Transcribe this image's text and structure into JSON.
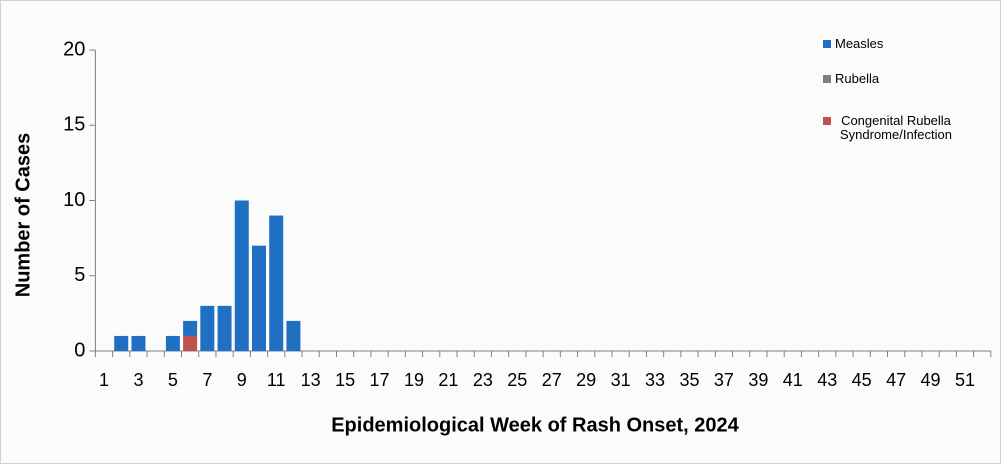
{
  "chart_data": {
    "type": "bar",
    "stacked": true,
    "x_label": "Epidemiological Week of Rash Onset, 2024",
    "y_label": "Number of Cases",
    "categories": [
      1,
      null,
      3,
      null,
      5,
      null,
      7,
      null,
      9,
      null,
      11,
      null,
      13,
      null,
      15,
      null,
      17,
      null,
      19,
      null,
      21,
      null,
      23,
      null,
      25,
      null,
      27,
      null,
      29,
      null,
      31,
      null,
      33,
      null,
      35,
      null,
      37,
      null,
      39,
      null,
      41,
      null,
      43,
      null,
      45,
      null,
      47,
      null,
      49,
      null,
      51,
      null
    ],
    "series": [
      {
        "name": "Measles",
        "color": "#1f6fc2",
        "values": [
          0,
          1,
          1,
          0,
          1,
          1,
          3,
          3,
          10,
          7,
          9,
          2,
          0,
          0,
          0,
          0,
          0,
          0,
          0,
          0,
          0,
          0,
          0,
          0,
          0,
          0,
          0,
          0,
          0,
          0,
          0,
          0,
          0,
          0,
          0,
          0,
          0,
          0,
          0,
          0,
          0,
          0,
          0,
          0,
          0,
          0,
          0,
          0,
          0,
          0,
          0,
          0
        ]
      },
      {
        "name": "Rubella",
        "color": "#7f7f7f",
        "values": [
          0,
          0,
          0,
          0,
          0,
          0,
          0,
          0,
          0,
          0,
          0,
          0,
          0,
          0,
          0,
          0,
          0,
          0,
          0,
          0,
          0,
          0,
          0,
          0,
          0,
          0,
          0,
          0,
          0,
          0,
          0,
          0,
          0,
          0,
          0,
          0,
          0,
          0,
          0,
          0,
          0,
          0,
          0,
          0,
          0,
          0,
          0,
          0,
          0,
          0,
          0,
          0
        ]
      },
      {
        "name": "Congenital Rubella Syndrome/Infection",
        "color": "#c0504d",
        "values": [
          0,
          0,
          0,
          0,
          0,
          1,
          0,
          0,
          0,
          0,
          0,
          0,
          0,
          0,
          0,
          0,
          0,
          0,
          0,
          0,
          0,
          0,
          0,
          0,
          0,
          0,
          0,
          0,
          0,
          0,
          0,
          0,
          0,
          0,
          0,
          0,
          0,
          0,
          0,
          0,
          0,
          0,
          0,
          0,
          0,
          0,
          0,
          0,
          0,
          0,
          0,
          0
        ]
      }
    ],
    "ylim": [
      0,
      20
    ],
    "yticks": [
      0,
      5,
      10,
      15,
      20
    ],
    "grid": false,
    "legend": "top-right"
  }
}
